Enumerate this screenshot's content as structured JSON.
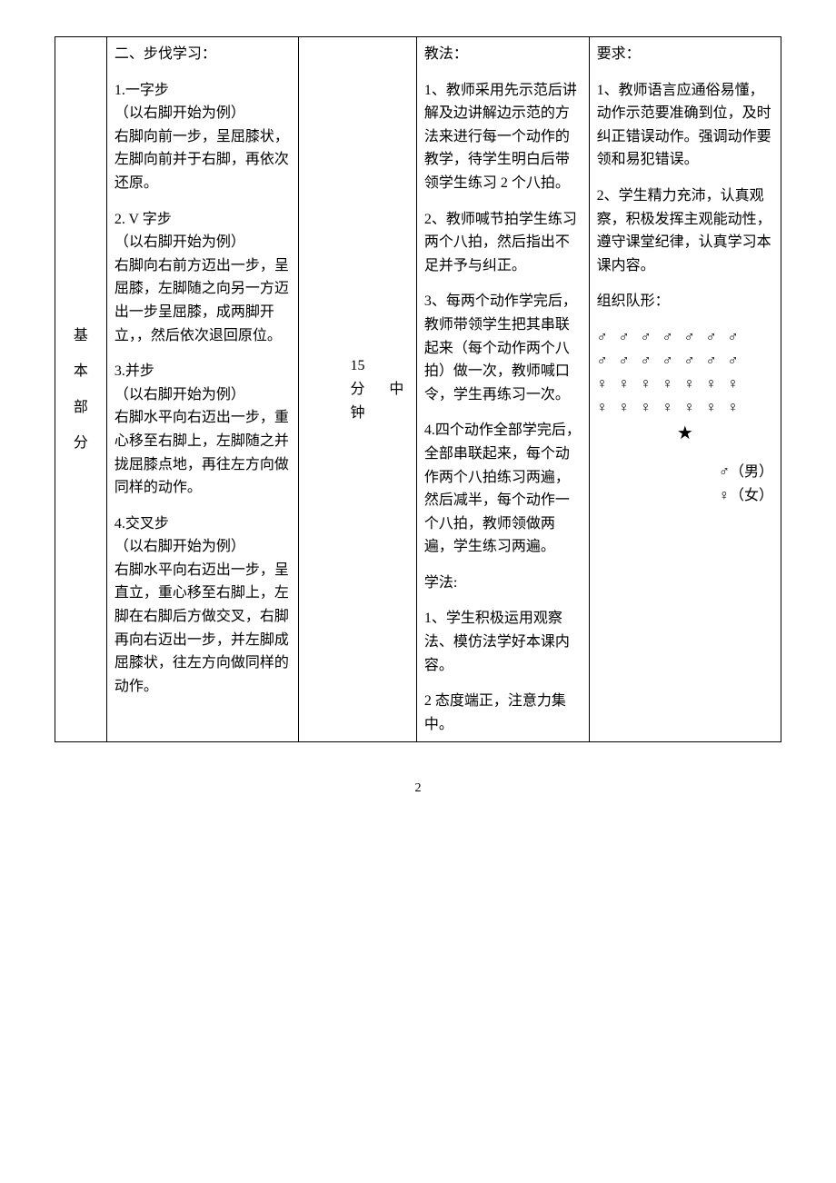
{
  "section_label": {
    "c1": "基",
    "c2": "本",
    "c3": "部",
    "c4": "分"
  },
  "content": {
    "title": "二、步伐学习：",
    "step1_title": "1.一字步",
    "step1_note": "（以右脚开始为例）",
    "step1_body": "右脚向前一步，呈屈膝状，左脚向前并于右脚，再依次还原。",
    "step2_title": "2. V 字步",
    "step2_note": "（以右脚开始为例）",
    "step2_body": "右脚向右前方迈出一步，呈屈膝，左脚随之向另一方迈出一步呈屈膝，成两脚开立，，然后依次退回原位。",
    "step3_title": "3.并步",
    "step3_note": "（以右脚开始为例）",
    "step3_body": "右脚水平向右迈出一步，重心移至右脚上，左脚随之并拢屈膝点地，再往左方向做同样的动作。",
    "step4_title": "4.交叉步",
    "step4_note": "（以右脚开始为例）",
    "step4_body": "右脚水平向右迈出一步，呈直立，重心移至右脚上，左脚在右脚后方做交叉，右脚再向右迈出一步，并左脚成屈膝状，往左方向做同样的动作。"
  },
  "time": "15分钟",
  "intensity": "中",
  "teaching": {
    "jiaofa_label": "教法：",
    "jf1": "1、教师采用先示范后讲解及边讲解边示范的方法来进行每一个动作的教学，待学生明白后带领学生练习 2 个八拍。",
    "jf2": "2、教师喊节拍学生练习两个八拍，然后指出不足并予与纠正。",
    "jf3": "3、每两个动作学完后，教师带领学生把其串联起来（每个动作两个八拍）做一次，教师喊口令，学生再练习一次。",
    "jf4": "4.四个动作全部学完后，全部串联起来，每个动作两个八拍练习两遍，然后减半，每个动作一个八拍，教师领做两遍，学生练习两遍。",
    "xuefa_label": "学法:",
    "xf1": "1、学生积极运用观察法、模仿法学好本课内容。",
    "xf2": "2 态度端正，注意力集中。"
  },
  "requirements": {
    "label": "要求：",
    "r1": "1、教师语言应通俗易懂，动作示范要准确到位，及时纠正错误动作。强调动作要领和易犯错误。",
    "r2": "2、学生精力充沛，认真观察，积极发挥主观能动性，遵守课堂纪律，认真学习本课内容。",
    "formation_label": "组织队形：",
    "male_row": "♂ ♂ ♂ ♂ ♂ ♂ ♂",
    "female_row": "♀ ♀ ♀ ♀ ♀ ♀ ♀",
    "star": "★",
    "legend_male": "♂（男）",
    "legend_female": "♀（女）"
  },
  "page_number": "2"
}
